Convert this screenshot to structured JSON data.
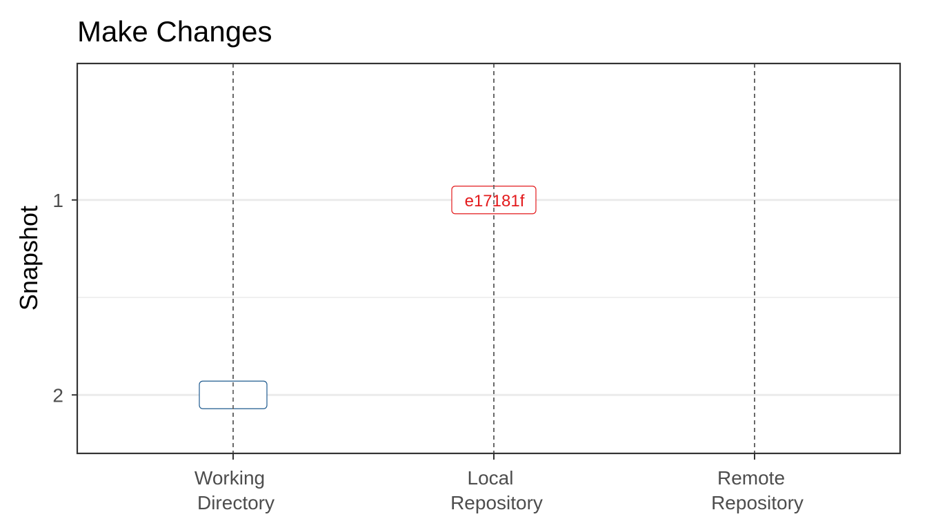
{
  "chart_data": {
    "type": "scatter",
    "title": "Make Changes",
    "xlabel": "",
    "ylabel": "Snapshot",
    "x_categories": [
      "Working\nDirectory",
      "Local\nRepository",
      "Remote\nRepository"
    ],
    "y_ticks": [
      1,
      2
    ],
    "ylim": [
      0.3,
      2.3
    ],
    "y_reversed": true,
    "grid": true,
    "colors": {
      "commit": "#e31a1c",
      "working": "#1f5b8f",
      "vline": "#666666",
      "grid": "#ebebeb",
      "panel": "#333333"
    },
    "points": [
      {
        "x": "Local\nRepository",
        "y": 1,
        "label": "e17181f",
        "color": "#e31a1c"
      },
      {
        "x": "Working\nDirectory",
        "y": 2,
        "label": "",
        "color": "#1f5b8f"
      }
    ]
  }
}
